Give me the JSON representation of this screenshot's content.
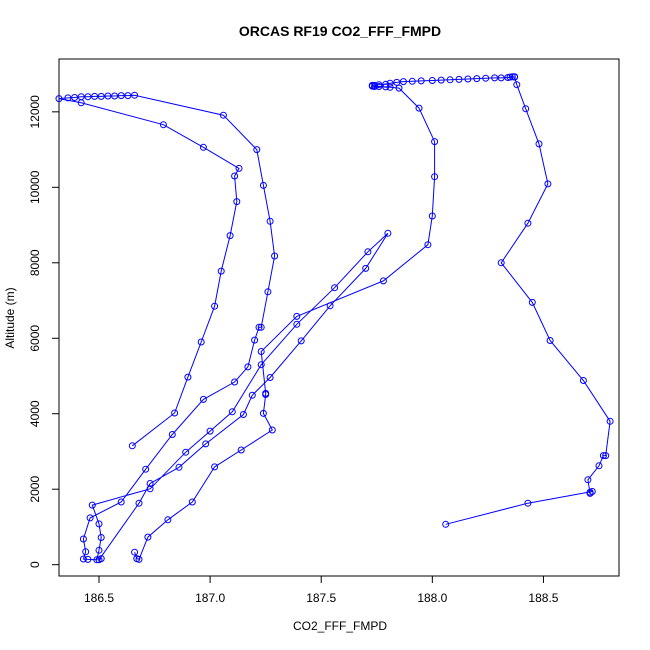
{
  "chart_data": {
    "type": "scatter",
    "title": "ORCAS RF19 CO2_FFF_FMPD",
    "xlabel": "CO2_FFF_FMPD",
    "ylabel": "Altitude (m)",
    "xlim": [
      186.32,
      188.84
    ],
    "ylim": [
      -300,
      13400
    ],
    "x_ticks": [
      186.5,
      187.0,
      187.5,
      188.0,
      188.5
    ],
    "x_tick_labels": [
      "186.5",
      "187.0",
      "187.5",
      "188.0",
      "188.5"
    ],
    "y_ticks": [
      0,
      2000,
      4000,
      6000,
      8000,
      10000,
      12000
    ],
    "y_tick_labels": [
      "0",
      "2000",
      "4000",
      "6000",
      "8000",
      "10000",
      "12000"
    ],
    "grid": false,
    "color": "#0000ff",
    "series": [
      {
        "values": [
          [
            186.65,
            3150
          ],
          [
            186.84,
            4020
          ],
          [
            186.9,
            4970
          ],
          [
            186.96,
            5900
          ],
          [
            187.02,
            6850
          ],
          [
            187.05,
            7780
          ],
          [
            187.09,
            8720
          ],
          [
            187.12,
            9620
          ],
          [
            187.11,
            10300
          ],
          [
            187.13,
            10500
          ],
          [
            186.97,
            11060
          ],
          [
            186.79,
            11660
          ],
          [
            186.42,
            12240
          ],
          [
            186.32,
            12350
          ],
          [
            186.36,
            12370
          ],
          [
            186.39,
            12380
          ],
          [
            186.42,
            12400
          ],
          [
            186.45,
            12400
          ],
          [
            186.48,
            12410
          ],
          [
            186.51,
            12410
          ],
          [
            186.54,
            12420
          ],
          [
            186.57,
            12420
          ],
          [
            186.6,
            12430
          ],
          [
            186.63,
            12430
          ],
          [
            186.66,
            12440
          ],
          [
            187.06,
            11910
          ],
          [
            187.21,
            11000
          ],
          [
            187.24,
            10050
          ],
          [
            187.27,
            9100
          ],
          [
            187.29,
            8180
          ],
          [
            187.26,
            7230
          ],
          [
            187.23,
            6290
          ],
          [
            187.22,
            6290
          ],
          [
            187.2,
            5950
          ],
          [
            187.17,
            5240
          ],
          [
            187.11,
            4840
          ],
          [
            186.97,
            4380
          ],
          [
            186.83,
            3450
          ],
          [
            186.71,
            2530
          ],
          [
            186.6,
            1660
          ],
          [
            186.46,
            1240
          ],
          [
            186.43,
            680
          ],
          [
            186.44,
            340
          ],
          [
            186.43,
            150
          ],
          [
            186.45,
            140
          ],
          [
            186.49,
            130
          ],
          [
            186.5,
            380
          ],
          [
            186.51,
            720
          ],
          [
            186.5,
            1080
          ],
          [
            186.47,
            1580
          ],
          [
            186.73,
            2010
          ],
          [
            186.89,
            2980
          ],
          [
            187.0,
            3540
          ],
          [
            187.1,
            4050
          ],
          [
            187.23,
            5300
          ],
          [
            187.39,
            6370
          ],
          [
            187.56,
            7340
          ],
          [
            187.71,
            8290
          ],
          [
            187.8,
            8780
          ],
          [
            187.7,
            7850
          ],
          [
            187.54,
            6860
          ],
          [
            187.41,
            5930
          ],
          [
            187.27,
            4960
          ],
          [
            187.19,
            4490
          ],
          [
            187.15,
            3980
          ],
          [
            186.98,
            3200
          ],
          [
            186.86,
            2580
          ],
          [
            186.73,
            2150
          ],
          [
            186.68,
            1630
          ],
          [
            186.5,
            130
          ],
          [
            186.51,
            160
          ]
        ]
      },
      {
        "values": [
          [
            186.66,
            330
          ],
          [
            186.67,
            160
          ],
          [
            186.68,
            140
          ],
          [
            186.72,
            730
          ],
          [
            186.81,
            1190
          ],
          [
            186.92,
            1660
          ],
          [
            187.02,
            2590
          ],
          [
            187.14,
            3040
          ],
          [
            187.28,
            3570
          ],
          [
            187.24,
            4010
          ],
          [
            187.25,
            4510
          ],
          [
            187.25,
            4540
          ],
          [
            187.23,
            5650
          ],
          [
            187.39,
            6580
          ],
          [
            187.78,
            7520
          ],
          [
            187.98,
            8480
          ],
          [
            188.0,
            9240
          ],
          [
            188.01,
            10280
          ],
          [
            188.01,
            11210
          ],
          [
            187.94,
            12100
          ],
          [
            187.85,
            12630
          ],
          [
            187.81,
            12650
          ],
          [
            187.79,
            12660
          ],
          [
            187.76,
            12670
          ],
          [
            187.74,
            12670
          ],
          [
            187.73,
            12680
          ],
          [
            187.73,
            12700
          ],
          [
            187.74,
            12700
          ],
          [
            187.76,
            12720
          ],
          [
            187.79,
            12730
          ],
          [
            187.81,
            12760
          ],
          [
            187.84,
            12780
          ],
          [
            187.87,
            12800
          ],
          [
            187.91,
            12810
          ],
          [
            187.95,
            12820
          ],
          [
            188.0,
            12830
          ],
          [
            188.04,
            12840
          ],
          [
            188.08,
            12850
          ],
          [
            188.12,
            12860
          ],
          [
            188.16,
            12870
          ],
          [
            188.2,
            12880
          ],
          [
            188.24,
            12890
          ],
          [
            188.28,
            12900
          ],
          [
            188.31,
            12900
          ],
          [
            188.34,
            12910
          ],
          [
            188.35,
            12920
          ],
          [
            188.36,
            12930
          ],
          [
            188.37,
            12920
          ],
          [
            188.37,
            12930
          ],
          [
            188.38,
            12720
          ],
          [
            188.42,
            12080
          ],
          [
            188.48,
            11150
          ],
          [
            188.52,
            10090
          ],
          [
            188.43,
            9050
          ],
          [
            188.31,
            8000
          ],
          [
            188.45,
            6950
          ],
          [
            188.53,
            5940
          ],
          [
            188.68,
            4880
          ],
          [
            188.8,
            3800
          ],
          [
            188.78,
            2890
          ],
          [
            188.77,
            2890
          ],
          [
            188.75,
            2620
          ],
          [
            188.7,
            2250
          ],
          [
            188.71,
            1890
          ],
          [
            188.71,
            1920
          ],
          [
            188.72,
            1940
          ],
          [
            188.43,
            1630
          ],
          [
            188.06,
            1070
          ]
        ]
      }
    ]
  }
}
